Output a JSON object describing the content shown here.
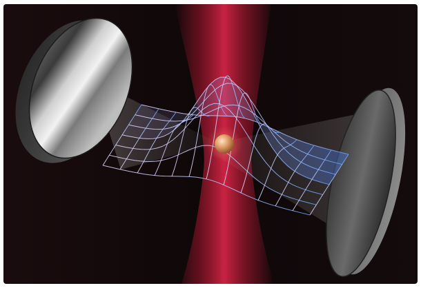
{
  "figure": {
    "background_color": "#0b0506",
    "laser_color": "#c41d3a",
    "mirror_color": "#4a4a4a",
    "particle_color": "#d9905a",
    "wavepacket_color_start": "#c9b5ff",
    "wavepacket_color_end": "#6aa3ff",
    "elements": [
      "left-mirror",
      "right-mirror",
      "trapping-laser-beam",
      "cavity-light-beam",
      "gaussian-wavepacket-mesh",
      "levitated-particle"
    ]
  }
}
